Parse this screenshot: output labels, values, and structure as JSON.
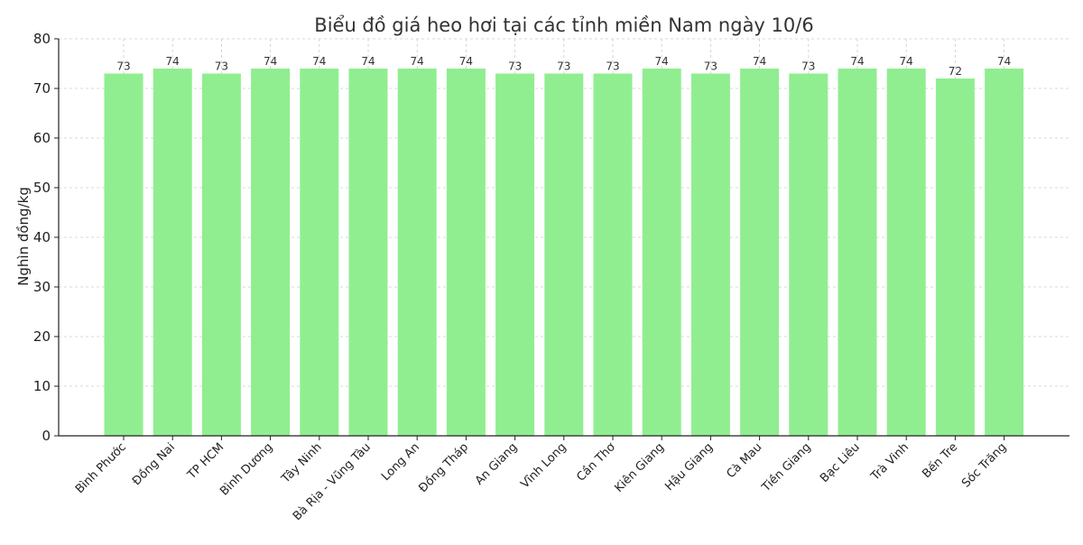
{
  "chart_data": {
    "type": "bar",
    "title": "Biểu đồ giá heo hơi tại các tỉnh miền Nam ngày 10/6",
    "xlabel": "",
    "ylabel": "Nghìn đồng/kg",
    "ylim": [
      0,
      80
    ],
    "yticks": [
      0,
      10,
      20,
      30,
      40,
      50,
      60,
      70,
      80
    ],
    "grid": true,
    "bar_color": "#90ee90",
    "categories": [
      "Bình Phước",
      "Đồng Nai",
      "TP HCM",
      "Bình Dương",
      "Tây Ninh",
      "Bà Rịa - Vũng Tàu",
      "Long An",
      "Đồng Tháp",
      "An Giang",
      "Vĩnh Long",
      "Cần Thơ",
      "Kiên Giang",
      "Hậu Giang",
      "Cà Mau",
      "Tiền Giang",
      "Bạc Liêu",
      "Trà Vinh",
      "Bến Tre",
      "Sóc Trăng"
    ],
    "values": [
      73,
      74,
      73,
      74,
      74,
      74,
      74,
      74,
      73,
      73,
      73,
      74,
      73,
      74,
      73,
      74,
      74,
      72,
      74
    ]
  }
}
